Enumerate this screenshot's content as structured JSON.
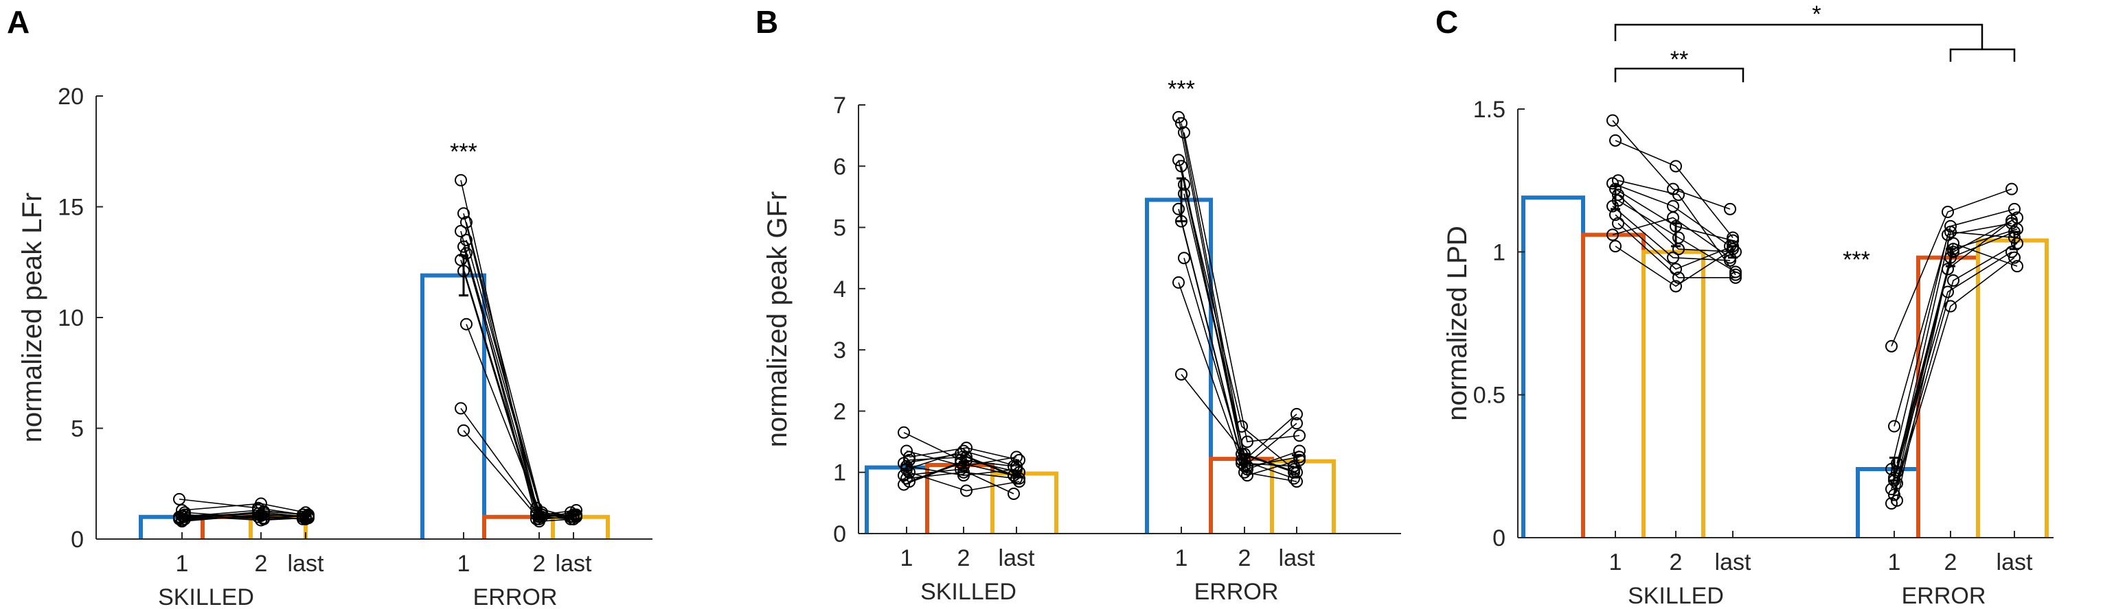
{
  "colors": {
    "c1": "#1f77c4",
    "c2": "#d95319",
    "c3": "#edb120",
    "axis": "#262626",
    "subject": "#000000"
  },
  "chart_data": [
    {
      "type": "bar",
      "panel": "A",
      "ylabel": "normalized peak LFr",
      "ylim": [
        0,
        20
      ],
      "yticks": [
        0,
        5,
        10,
        15,
        20
      ],
      "groups": [
        "SKILLED",
        "ERROR"
      ],
      "categories": [
        "1",
        "2",
        "last"
      ],
      "series": [
        {
          "group": "SKILLED",
          "category": "1",
          "mean": 1.0,
          "sem": 0.1
        },
        {
          "group": "SKILLED",
          "category": "2",
          "mean": 1.0,
          "sem": 0.1
        },
        {
          "group": "SKILLED",
          "category": "last",
          "mean": 1.0,
          "sem": 0.1
        },
        {
          "group": "ERROR",
          "category": "1",
          "mean": 11.9,
          "sem": 0.9
        },
        {
          "group": "ERROR",
          "category": "2",
          "mean": 1.0,
          "sem": 0.1
        },
        {
          "group": "ERROR",
          "category": "last",
          "mean": 1.0,
          "sem": 0.1
        }
      ],
      "subjects": {
        "SKILLED": [
          [
            1.8,
            1.4,
            1.1
          ],
          [
            1.3,
            1.6,
            1.2
          ],
          [
            1.0,
            1.2,
            1.0
          ],
          [
            0.9,
            1.0,
            0.9
          ],
          [
            0.8,
            1.1,
            1.0
          ],
          [
            1.1,
            0.9,
            0.95
          ],
          [
            1.0,
            1.3,
            1.1
          ],
          [
            0.85,
            1.05,
            0.9
          ],
          [
            1.2,
            0.95,
            1.05
          ],
          [
            0.95,
            1.15,
            1.0
          ],
          [
            1.05,
            0.85,
            0.95
          ],
          [
            0.9,
            1.25,
            1.1
          ]
        ],
        "ERROR": [
          [
            16.2,
            1.1,
            1.0
          ],
          [
            14.7,
            1.0,
            1.1
          ],
          [
            14.3,
            1.2,
            1.0
          ],
          [
            13.9,
            0.9,
            1.2
          ],
          [
            13.2,
            1.0,
            0.9
          ],
          [
            12.9,
            1.1,
            1.3
          ],
          [
            12.6,
            1.4,
            1.0
          ],
          [
            12.1,
            0.8,
            0.9
          ],
          [
            9.7,
            1.0,
            1.1
          ],
          [
            5.9,
            1.2,
            0.9
          ],
          [
            4.9,
            0.9,
            1.0
          ],
          [
            13.5,
            1.1,
            1.05
          ]
        ]
      },
      "significance": [
        {
          "label": "***",
          "group": "ERROR",
          "category": "1"
        }
      ]
    },
    {
      "type": "bar",
      "panel": "B",
      "ylabel": "normalized peak GFr",
      "ylim": [
        0,
        7
      ],
      "yticks": [
        0,
        1,
        2,
        3,
        4,
        5,
        6,
        7
      ],
      "groups": [
        "SKILLED",
        "ERROR"
      ],
      "categories": [
        "1",
        "2",
        "last"
      ],
      "series": [
        {
          "group": "SKILLED",
          "category": "1",
          "mean": 1.08,
          "sem": 0.05
        },
        {
          "group": "SKILLED",
          "category": "2",
          "mean": 1.12,
          "sem": 0.05
        },
        {
          "group": "SKILLED",
          "category": "last",
          "mean": 0.98,
          "sem": 0.04
        },
        {
          "group": "ERROR",
          "category": "1",
          "mean": 5.45,
          "sem": 0.35
        },
        {
          "group": "ERROR",
          "category": "2",
          "mean": 1.22,
          "sem": 0.08
        },
        {
          "group": "ERROR",
          "category": "last",
          "mean": 1.18,
          "sem": 0.1
        }
      ],
      "subjects": {
        "SKILLED": [
          [
            1.65,
            1.2,
            1.1
          ],
          [
            1.35,
            1.1,
            1.25
          ],
          [
            1.25,
            1.4,
            1.2
          ],
          [
            1.15,
            1.3,
            0.95
          ],
          [
            1.05,
            1.35,
            1.1
          ],
          [
            1.0,
            0.7,
            0.85
          ],
          [
            0.95,
            1.05,
            0.65
          ],
          [
            0.9,
            1.0,
            0.9
          ],
          [
            0.85,
            1.2,
            1.0
          ],
          [
            0.8,
            1.15,
            0.95
          ],
          [
            1.1,
            0.95,
            1.05
          ],
          [
            1.2,
            1.25,
            0.9
          ]
        ],
        "ERROR": [
          [
            6.8,
            1.3,
            1.0
          ],
          [
            6.7,
            1.2,
            1.95
          ],
          [
            6.55,
            1.5,
            1.6
          ],
          [
            6.1,
            1.75,
            1.05
          ],
          [
            6.0,
            1.1,
            1.8
          ],
          [
            5.7,
            1.05,
            1.35
          ],
          [
            5.3,
            1.2,
            0.9
          ],
          [
            5.1,
            1.0,
            0.85
          ],
          [
            4.5,
            0.95,
            1.2
          ],
          [
            4.1,
            1.15,
            1.1
          ],
          [
            2.6,
            1.3,
            1.0
          ],
          [
            5.55,
            1.1,
            1.25
          ]
        ]
      },
      "significance": [
        {
          "label": "***",
          "group": "ERROR",
          "category": "1"
        }
      ]
    },
    {
      "type": "bar",
      "panel": "C",
      "ylabel": "normalized LPD",
      "ylim": [
        0,
        1.5
      ],
      "yticks": [
        0,
        0.5,
        1,
        1.5
      ],
      "groups": [
        "SKILLED",
        "ERROR"
      ],
      "categories": [
        "1",
        "2",
        "last"
      ],
      "series": [
        {
          "group": "SKILLED",
          "category": "1",
          "mean": 1.19,
          "sem": 0.04
        },
        {
          "group": "SKILLED",
          "category": "2",
          "mean": 1.06,
          "sem": 0.04
        },
        {
          "group": "SKILLED",
          "category": "last",
          "mean": 1.0,
          "sem": 0.02
        },
        {
          "group": "ERROR",
          "category": "1",
          "mean": 0.24,
          "sem": 0.04
        },
        {
          "group": "ERROR",
          "category": "2",
          "mean": 0.98,
          "sem": 0.03
        },
        {
          "group": "ERROR",
          "category": "last",
          "mean": 1.04,
          "sem": 0.03
        }
      ],
      "subjects": {
        "SKILLED": [
          [
            1.46,
            1.22,
            1.15
          ],
          [
            1.39,
            1.3,
            1.05
          ],
          [
            1.25,
            1.2,
            0.92
          ],
          [
            1.24,
            1.16,
            1.02
          ],
          [
            1.22,
            1.09,
            1.04
          ],
          [
            1.2,
            1.01,
            1.0
          ],
          [
            1.16,
            0.98,
            0.97
          ],
          [
            1.13,
            0.94,
            1.02
          ],
          [
            1.1,
            0.91,
            0.91
          ],
          [
            1.06,
            1.12,
            0.98
          ],
          [
            1.02,
            0.88,
            1.01
          ],
          [
            1.18,
            1.05,
            0.93
          ]
        ],
        "ERROR": [
          [
            0.67,
            1.14,
            1.22
          ],
          [
            0.39,
            1.09,
            1.15
          ],
          [
            0.26,
            1.0,
            1.12
          ],
          [
            0.24,
            1.06,
            1.1
          ],
          [
            0.21,
            0.98,
            1.07
          ],
          [
            0.19,
            0.9,
            1.03
          ],
          [
            0.17,
            0.86,
            1.0
          ],
          [
            0.15,
            0.81,
            0.98
          ],
          [
            0.13,
            1.03,
            0.95
          ],
          [
            0.12,
            0.94,
            1.11
          ],
          [
            0.2,
            1.07,
            1.05
          ],
          [
            0.23,
            1.01,
            1.08
          ]
        ]
      },
      "significance": [
        {
          "label": "***",
          "group": "ERROR",
          "category": "1"
        },
        {
          "label": "**",
          "from": "SKILLED 1",
          "to": "SKILLED last"
        },
        {
          "label": "*",
          "from": "SKILLED 1",
          "to": "ERROR 2-last"
        }
      ]
    }
  ]
}
